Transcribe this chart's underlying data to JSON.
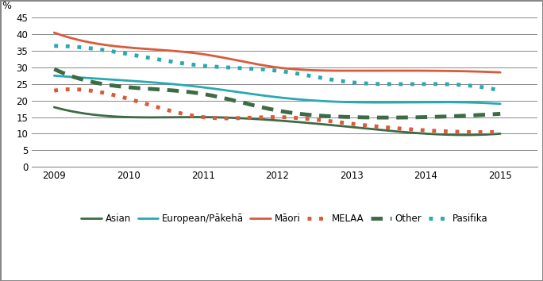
{
  "years": [
    2009,
    2010,
    2011,
    2012,
    2013,
    2014,
    2015
  ],
  "series": {
    "Asian": {
      "values": [
        18,
        15,
        15,
        14,
        12,
        10,
        10
      ],
      "color": "#3d6b45",
      "linestyle": "solid",
      "linewidth": 2.0,
      "dashes": null
    },
    "European/Pākehā": {
      "values": [
        27.5,
        26,
        24,
        21,
        19.5,
        19.5,
        19
      ],
      "color": "#29a9b1",
      "linestyle": "solid",
      "linewidth": 2.0,
      "dashes": null
    },
    "Māori": {
      "values": [
        40.5,
        36,
        34,
        30,
        29,
        29,
        28.5
      ],
      "color": "#d95b3a",
      "linestyle": "solid",
      "linewidth": 2.0,
      "dashes": null
    },
    "MELAA": {
      "values": [
        23,
        20.5,
        15,
        15,
        13,
        11,
        10.5
      ],
      "color": "#d95b3a",
      "linestyle": "dotted",
      "linewidth": 3.5,
      "dashes": [
        1,
        2
      ]
    },
    "Other": {
      "values": [
        29.5,
        24,
        22,
        17,
        15,
        15,
        16
      ],
      "color": "#3d6b45",
      "linestyle": "dotted",
      "linewidth": 3.5,
      "dashes": [
        3,
        2
      ]
    },
    "Pasifika": {
      "values": [
        36.5,
        34,
        30.5,
        29,
        25.5,
        25,
        23
      ],
      "color": "#29a9b1",
      "linestyle": "dotted",
      "linewidth": 3.5,
      "dashes": [
        1,
        2
      ]
    }
  },
  "ylabel": "%",
  "ylim": [
    0,
    47
  ],
  "yticks": [
    0,
    5,
    10,
    15,
    20,
    25,
    30,
    35,
    40,
    45
  ],
  "xlim": [
    2008.7,
    2015.5
  ],
  "xticks": [
    2009,
    2010,
    2011,
    2012,
    2013,
    2014,
    2015
  ],
  "background_color": "#ffffff",
  "grid_color": "#888888",
  "border_color": "#888888",
  "legend_order": [
    "Asian",
    "European/Pākehā",
    "Māori",
    "MELAA",
    "Other",
    "Pasifika"
  ]
}
